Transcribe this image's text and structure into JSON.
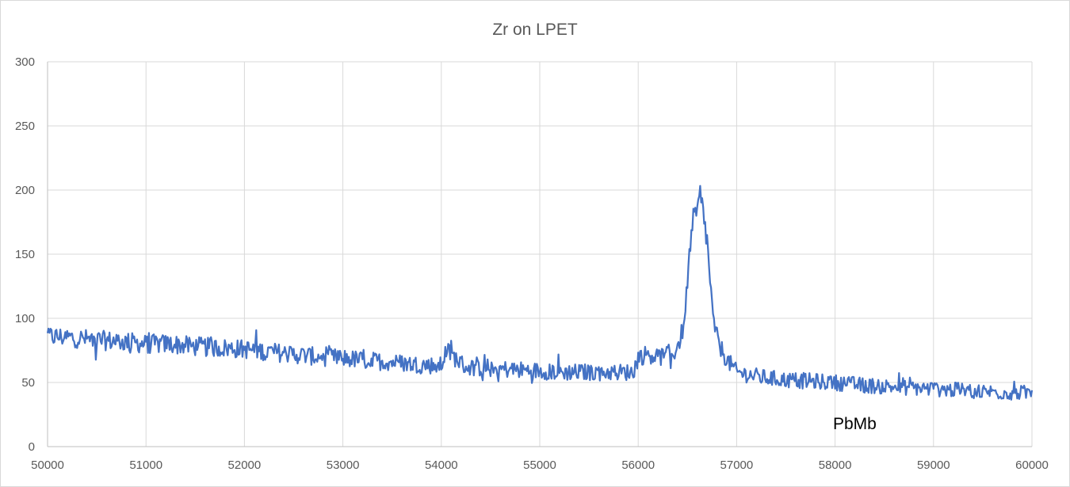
{
  "chart_data": {
    "type": "line",
    "title": "Zr on LPET",
    "xlabel": "",
    "ylabel": "",
    "xlim": [
      50000,
      60000
    ],
    "ylim": [
      0,
      300
    ],
    "x_ticks": [
      50000,
      51000,
      52000,
      53000,
      54000,
      55000,
      56000,
      57000,
      58000,
      59000,
      60000
    ],
    "y_ticks": [
      0,
      50,
      100,
      150,
      200,
      250,
      300
    ],
    "grid": true,
    "legend": "none",
    "line_color": "#4472c4",
    "annotations": [
      {
        "text": "PbMb",
        "x": 58200,
        "y": 18
      }
    ],
    "series": [
      {
        "x": [
          50000,
          50250,
          50500,
          50750,
          51000,
          51250,
          51500,
          51750,
          52000,
          52250,
          52500,
          52750,
          53000,
          53250,
          53500,
          53750,
          54000,
          54050,
          54250,
          54500,
          54750,
          55000,
          55250,
          55500,
          55750,
          55950,
          56000,
          56100,
          56250,
          56350,
          56400,
          56450,
          56500,
          56530,
          56560,
          56600,
          56630,
          56660,
          56700,
          56730,
          56760,
          56800,
          56850,
          56900,
          57000,
          57250,
          57500,
          57750,
          58000,
          58250,
          58500,
          58750,
          59000,
          59250,
          59500,
          59750,
          60000
        ],
        "y": [
          86,
          85,
          83,
          82,
          80,
          80,
          78,
          77,
          76,
          74,
          72,
          70,
          69,
          67,
          66,
          64,
          63,
          75,
          62,
          61,
          60,
          59,
          58,
          58,
          58,
          58,
          70,
          72,
          70,
          72,
          78,
          90,
          125,
          160,
          175,
          182,
          195,
          182,
          160,
          130,
          100,
          85,
          75,
          68,
          58,
          54,
          52,
          51,
          50,
          48,
          47,
          46,
          45,
          44,
          43,
          42,
          42
        ]
      }
    ]
  }
}
